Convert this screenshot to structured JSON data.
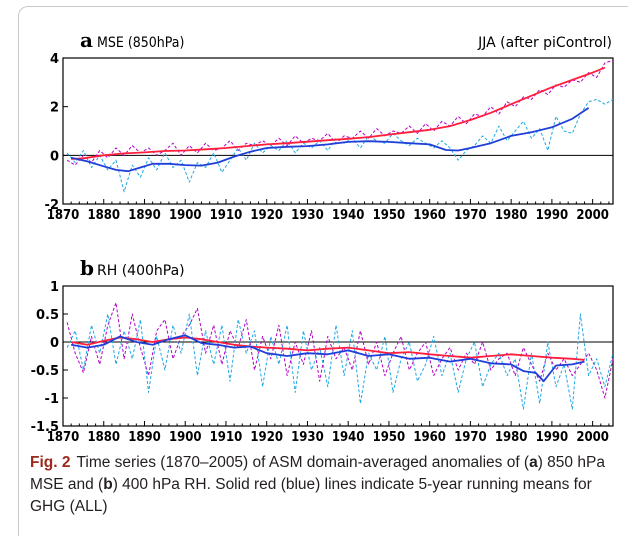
{
  "caption": {
    "label": "Fig. 2",
    "text_1": "Time series (1870–2005) of ASM domain-averaged anomalies of (",
    "letter_a": "a",
    "text_2": ") 850 hPa MSE and (",
    "letter_b": "b",
    "text_3": ") 400 hPa RH. Solid red (blue) lines indicate 5-year running means for GHG (ALL)"
  },
  "colors": {
    "red": "#ff1f3d",
    "blue": "#1f3fd8",
    "magenta_dash": "#b400c8",
    "cyan_dash": "#1ea8e6"
  },
  "chart_data": [
    {
      "type": "line",
      "panel_letter": "a",
      "title": "MSE (850hPa)",
      "annotation": "JJA (after piControl)",
      "xlim": [
        1870,
        2005
      ],
      "ylim": [
        -2,
        4
      ],
      "xticks": [
        1870,
        1880,
        1890,
        1900,
        1910,
        1920,
        1930,
        1940,
        1950,
        1960,
        1970,
        1980,
        1990,
        2000
      ],
      "yticks": [
        -2,
        0,
        2,
        4
      ],
      "zero_line": true,
      "series": [
        {
          "style": "solid",
          "color": "red",
          "x": [
            1872,
            1875,
            1880,
            1885,
            1890,
            1895,
            1900,
            1905,
            1910,
            1915,
            1920,
            1925,
            1930,
            1935,
            1940,
            1945,
            1950,
            1955,
            1960,
            1965,
            1970,
            1975,
            1980,
            1985,
            1990,
            1995,
            2000,
            2003
          ],
          "y": [
            -0.15,
            -0.12,
            0.0,
            0.08,
            0.12,
            0.18,
            0.2,
            0.25,
            0.3,
            0.38,
            0.45,
            0.5,
            0.56,
            0.62,
            0.68,
            0.75,
            0.85,
            0.95,
            1.05,
            1.2,
            1.45,
            1.75,
            2.1,
            2.45,
            2.8,
            3.1,
            3.4,
            3.6
          ]
        },
        {
          "style": "solid",
          "color": "blue",
          "x": [
            1872,
            1876,
            1880,
            1883,
            1886,
            1889,
            1892,
            1896,
            1900,
            1904,
            1908,
            1912,
            1916,
            1920,
            1925,
            1930,
            1935,
            1940,
            1945,
            1950,
            1955,
            1960,
            1964,
            1967,
            1970,
            1975,
            1980,
            1985,
            1990,
            1995,
            1999
          ],
          "y": [
            -0.1,
            -0.25,
            -0.45,
            -0.6,
            -0.65,
            -0.5,
            -0.35,
            -0.35,
            -0.4,
            -0.42,
            -0.3,
            -0.05,
            0.15,
            0.3,
            0.35,
            0.38,
            0.45,
            0.55,
            0.58,
            0.55,
            0.5,
            0.45,
            0.22,
            0.2,
            0.3,
            0.5,
            0.8,
            0.95,
            1.15,
            1.5,
            1.95
          ]
        },
        {
          "style": "dashed",
          "color": "magenta_dash",
          "x": [
            1871,
            1873,
            1875,
            1877,
            1879,
            1881,
            1883,
            1885,
            1887,
            1889,
            1891,
            1893,
            1895,
            1897,
            1899,
            1901,
            1903,
            1905,
            1907,
            1909,
            1911,
            1913,
            1915,
            1917,
            1919,
            1921,
            1923,
            1925,
            1927,
            1929,
            1931,
            1933,
            1935,
            1937,
            1939,
            1941,
            1943,
            1945,
            1947,
            1949,
            1951,
            1953,
            1955,
            1957,
            1959,
            1961,
            1963,
            1965,
            1967,
            1969,
            1971,
            1973,
            1975,
            1977,
            1979,
            1981,
            1983,
            1985,
            1987,
            1989,
            1991,
            1993,
            1995,
            1997,
            1999,
            2001,
            2003,
            2005
          ],
          "y": [
            -0.2,
            -0.4,
            0.0,
            -0.3,
            0.2,
            -0.1,
            0.3,
            0.0,
            0.4,
            0.1,
            0.3,
            0.0,
            0.2,
            0.5,
            0.0,
            0.4,
            0.1,
            0.5,
            0.2,
            0.3,
            0.6,
            0.2,
            0.5,
            0.4,
            0.6,
            0.4,
            0.7,
            0.4,
            0.8,
            0.5,
            0.7,
            0.6,
            0.9,
            0.5,
            0.8,
            0.7,
            1.0,
            0.7,
            1.1,
            0.8,
            1.0,
            0.9,
            1.2,
            0.9,
            1.3,
            1.0,
            1.4,
            1.2,
            1.6,
            1.3,
            1.7,
            1.6,
            2.0,
            1.7,
            2.2,
            2.0,
            2.4,
            2.3,
            2.7,
            2.5,
            2.9,
            2.8,
            3.1,
            3.0,
            3.4,
            3.2,
            3.8,
            3.9
          ]
        },
        {
          "style": "dashed",
          "color": "cyan_dash",
          "x": [
            1871,
            1873,
            1875,
            1877,
            1879,
            1881,
            1883,
            1885,
            1887,
            1889,
            1891,
            1893,
            1895,
            1897,
            1899,
            1901,
            1903,
            1905,
            1907,
            1909,
            1911,
            1913,
            1915,
            1917,
            1919,
            1921,
            1923,
            1925,
            1927,
            1929,
            1931,
            1933,
            1935,
            1937,
            1939,
            1941,
            1943,
            1945,
            1947,
            1949,
            1951,
            1953,
            1955,
            1957,
            1959,
            1961,
            1963,
            1965,
            1967,
            1969,
            1971,
            1973,
            1975,
            1977,
            1979,
            1981,
            1983,
            1985,
            1987,
            1989,
            1991,
            1993,
            1995,
            1997,
            1999,
            2001,
            2003,
            2005
          ],
          "y": [
            0.1,
            -0.3,
            0.2,
            -0.5,
            0.0,
            -0.6,
            -0.2,
            -1.5,
            -0.4,
            -0.9,
            -0.1,
            -0.6,
            0.1,
            -0.5,
            -0.2,
            -1.1,
            -0.3,
            -0.5,
            0.1,
            -0.7,
            -0.2,
            0.3,
            -0.2,
            0.5,
            0.1,
            0.4,
            0.2,
            0.6,
            0.1,
            0.5,
            0.3,
            0.6,
            0.2,
            0.7,
            0.5,
            0.7,
            0.3,
            0.8,
            0.6,
            0.5,
            0.9,
            0.6,
            0.4,
            0.7,
            0.5,
            0.3,
            0.6,
            0.3,
            -0.2,
            0.2,
            0.4,
            0.8,
            0.5,
            1.2,
            0.6,
            1.0,
            1.4,
            0.7,
            1.1,
            0.2,
            1.6,
            1.0,
            0.9,
            1.7,
            2.2,
            2.3,
            2.1,
            2.3
          ]
        }
      ]
    },
    {
      "type": "line",
      "panel_letter": "b",
      "title": "RH (400hPa)",
      "xlim": [
        1870,
        2005
      ],
      "ylim": [
        -1.5,
        1
      ],
      "xticks": [
        1870,
        1880,
        1890,
        1900,
        1910,
        1920,
        1930,
        1940,
        1950,
        1960,
        1970,
        1980,
        1990,
        2000
      ],
      "yticks": [
        -1.5,
        -1,
        -0.5,
        0,
        0.5,
        1
      ],
      "zero_line": true,
      "series": [
        {
          "style": "solid",
          "color": "red",
          "x": [
            1872,
            1876,
            1880,
            1884,
            1888,
            1892,
            1896,
            1900,
            1904,
            1908,
            1912,
            1916,
            1920,
            1925,
            1930,
            1935,
            1940,
            1945,
            1950,
            1955,
            1960,
            1965,
            1970,
            1975,
            1980,
            1985,
            1990,
            1995,
            1998
          ],
          "y": [
            0.0,
            -0.05,
            0.02,
            0.08,
            0.05,
            0.0,
            0.05,
            0.08,
            0.05,
            0.0,
            -0.05,
            -0.08,
            -0.1,
            -0.12,
            -0.15,
            -0.12,
            -0.1,
            -0.15,
            -0.2,
            -0.18,
            -0.22,
            -0.25,
            -0.28,
            -0.25,
            -0.22,
            -0.25,
            -0.28,
            -0.3,
            -0.32
          ]
        },
        {
          "style": "solid",
          "color": "blue",
          "x": [
            1872,
            1876,
            1880,
            1884,
            1888,
            1892,
            1896,
            1900,
            1904,
            1908,
            1912,
            1916,
            1920,
            1925,
            1930,
            1935,
            1940,
            1945,
            1950,
            1955,
            1960,
            1965,
            1970,
            1975,
            1980,
            1983,
            1986,
            1988,
            1991,
            1995,
            1998
          ],
          "y": [
            -0.05,
            -0.1,
            -0.05,
            0.1,
            0.0,
            -0.05,
            0.05,
            0.12,
            -0.02,
            -0.05,
            -0.1,
            -0.08,
            -0.2,
            -0.25,
            -0.2,
            -0.22,
            -0.15,
            -0.25,
            -0.22,
            -0.3,
            -0.28,
            -0.35,
            -0.3,
            -0.38,
            -0.4,
            -0.52,
            -0.55,
            -0.7,
            -0.42,
            -0.4,
            -0.35
          ]
        },
        {
          "style": "dashed",
          "color": "magenta_dash",
          "x": [
            1871,
            1873,
            1875,
            1877,
            1879,
            1881,
            1883,
            1885,
            1887,
            1889,
            1891,
            1893,
            1895,
            1897,
            1899,
            1901,
            1903,
            1905,
            1907,
            1909,
            1911,
            1913,
            1915,
            1917,
            1919,
            1921,
            1923,
            1925,
            1927,
            1929,
            1931,
            1933,
            1935,
            1937,
            1939,
            1941,
            1943,
            1945,
            1947,
            1949,
            1951,
            1953,
            1955,
            1957,
            1959,
            1961,
            1963,
            1965,
            1967,
            1969,
            1971,
            1973,
            1975,
            1977,
            1979,
            1981,
            1983,
            1985,
            1987,
            1989,
            1991,
            1993,
            1995,
            1997,
            1999,
            2001,
            2003,
            2005
          ],
          "y": [
            0.35,
            -0.2,
            -0.55,
            0.1,
            -0.4,
            0.3,
            0.7,
            -0.3,
            0.5,
            -0.1,
            -0.6,
            0.2,
            0.4,
            -0.3,
            0.1,
            0.3,
            0.6,
            -0.2,
            0.3,
            -0.4,
            0.2,
            -0.1,
            0.4,
            -0.5,
            0.1,
            -0.3,
            0.3,
            -0.6,
            0.0,
            -0.4,
            0.2,
            -0.7,
            0.1,
            -0.3,
            -0.1,
            -0.5,
            0.2,
            -0.4,
            0.0,
            -0.6,
            -0.2,
            0.1,
            -0.5,
            -0.2,
            0.0,
            -0.6,
            -0.3,
            -0.1,
            -0.5,
            -0.2,
            -0.4,
            0.0,
            -0.5,
            -0.3,
            -0.2,
            -0.6,
            -0.1,
            -0.4,
            -0.7,
            -0.2,
            -0.5,
            -0.3,
            -0.6,
            -0.4,
            -0.2,
            -0.5,
            -1.0,
            -0.3
          ]
        },
        {
          "style": "dashed",
          "color": "cyan_dash",
          "x": [
            1871,
            1873,
            1875,
            1877,
            1879,
            1881,
            1883,
            1885,
            1887,
            1889,
            1891,
            1893,
            1895,
            1897,
            1899,
            1901,
            1903,
            1905,
            1907,
            1909,
            1911,
            1913,
            1915,
            1917,
            1919,
            1921,
            1923,
            1925,
            1927,
            1929,
            1931,
            1933,
            1935,
            1937,
            1939,
            1941,
            1943,
            1945,
            1947,
            1949,
            1951,
            1953,
            1955,
            1957,
            1959,
            1961,
            1963,
            1965,
            1967,
            1969,
            1971,
            1973,
            1975,
            1977,
            1979,
            1981,
            1983,
            1985,
            1987,
            1989,
            1991,
            1993,
            1995,
            1997,
            1999,
            2001,
            2003,
            2005
          ],
          "y": [
            -0.1,
            0.2,
            -0.5,
            0.3,
            -0.2,
            0.5,
            -0.4,
            0.2,
            -0.3,
            0.4,
            -0.9,
            0.1,
            -0.5,
            0.3,
            -0.2,
            0.5,
            -0.6,
            0.2,
            -0.4,
            0.3,
            -0.7,
            0.4,
            -0.2,
            0.2,
            -0.8,
            0.1,
            -0.4,
            0.3,
            -0.9,
            0.2,
            -0.5,
            -0.1,
            -0.8,
            0.3,
            -0.6,
            0.2,
            -1.1,
            -0.2,
            -0.5,
            0.1,
            -0.9,
            -0.3,
            0.0,
            -0.7,
            -0.4,
            0.1,
            -0.6,
            -0.2,
            -0.9,
            -0.3,
            0.0,
            -0.8,
            -0.4,
            -0.2,
            -0.6,
            -0.3,
            -1.2,
            -0.2,
            -1.1,
            0.0,
            -0.8,
            -0.4,
            -1.2,
            0.5,
            -0.6,
            -0.3,
            -0.8,
            -0.2
          ]
        }
      ]
    }
  ]
}
